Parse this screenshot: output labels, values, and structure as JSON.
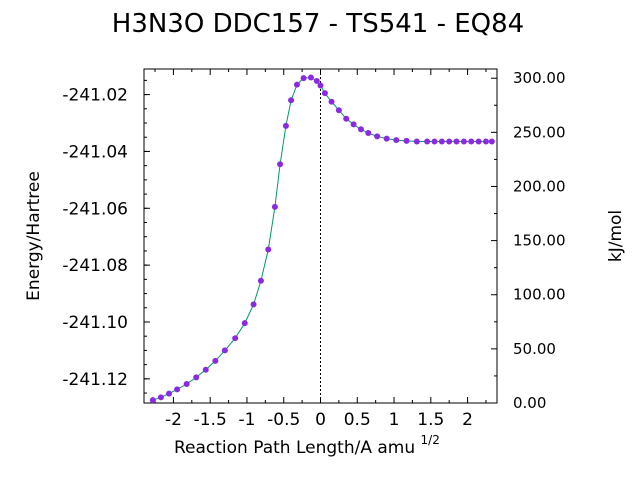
{
  "chart_data": {
    "type": "line",
    "title": "H3N3O   DDC157 - TS541 - EQ84",
    "xlabel": "Reaction Path Length/A amu",
    "xlabel_superscript": "1/2",
    "ylabel_left": "Energy/Hartree",
    "ylabel_right": "kJ/mol",
    "xlim": [
      -2.4,
      2.4
    ],
    "ylim_left": [
      -241.1285,
      -241.011
    ],
    "ylim_right": [
      0,
      308.5
    ],
    "x_ticks": [
      {
        "value": -2,
        "label": "-2"
      },
      {
        "value": -1.5,
        "label": "-1.5"
      },
      {
        "value": -1,
        "label": "-1"
      },
      {
        "value": -0.5,
        "label": "-0.5"
      },
      {
        "value": 0,
        "label": "0"
      },
      {
        "value": 0.5,
        "label": "0.5"
      },
      {
        "value": 1,
        "label": "1"
      },
      {
        "value": 1.5,
        "label": "1.5"
      },
      {
        "value": 2,
        "label": "2"
      }
    ],
    "y_ticks_left": [
      {
        "value": -241.02,
        "label": "-241.02"
      },
      {
        "value": -241.04,
        "label": "-241.04"
      },
      {
        "value": -241.06,
        "label": "-241.06"
      },
      {
        "value": -241.08,
        "label": "-241.08"
      },
      {
        "value": -241.1,
        "label": "-241.10"
      },
      {
        "value": -241.12,
        "label": "-241.12"
      }
    ],
    "y_ticks_right": [
      {
        "value": 300,
        "label": "300.00"
      },
      {
        "value": 250,
        "label": "250.00"
      },
      {
        "value": 200,
        "label": "200.00"
      },
      {
        "value": 150,
        "label": "150.00"
      },
      {
        "value": 100,
        "label": "100.00"
      },
      {
        "value": 50,
        "label": "50.00"
      },
      {
        "value": 0,
        "label": "0.00"
      }
    ],
    "ts_marker_x": 0,
    "colors": {
      "line": "#009966",
      "marker": "#8a2be2",
      "ts_line": "#000000"
    },
    "grid": false,
    "series": [
      {
        "x": [
          -2.28,
          -2.17,
          -2.06,
          -1.95,
          -1.82,
          -1.69,
          -1.56,
          -1.43,
          -1.3,
          -1.16,
          -1.03,
          -0.91,
          -0.81,
          -0.71,
          -0.62,
          -0.55,
          -0.47,
          -0.4,
          -0.32,
          -0.23,
          -0.13,
          -0.05,
          0.0,
          0.06,
          0.15,
          0.25,
          0.35,
          0.45,
          0.55,
          0.65,
          0.77,
          0.9,
          1.03,
          1.17,
          1.31,
          1.45,
          1.55,
          1.65,
          1.75,
          1.85,
          1.95,
          2.05,
          2.15,
          2.25,
          2.33
        ],
        "y": [
          -241.1275,
          -241.1265,
          -241.1252,
          -241.1237,
          -241.1218,
          -241.1195,
          -241.1168,
          -241.1137,
          -241.11,
          -241.1057,
          -241.1004,
          -241.0938,
          -241.0855,
          -241.0745,
          -241.0595,
          -241.0445,
          -241.031,
          -241.022,
          -241.0165,
          -241.0142,
          -241.014,
          -241.0152,
          -241.0168,
          -241.0195,
          -241.0225,
          -241.0255,
          -241.0285,
          -241.0305,
          -241.0322,
          -241.0335,
          -241.0347,
          -241.0355,
          -241.036,
          -241.0363,
          -241.0365,
          -241.0365,
          -241.0365,
          -241.0365,
          -241.0365,
          -241.0365,
          -241.0365,
          -241.0365,
          -241.0365,
          -241.0365,
          -241.0365
        ]
      }
    ]
  }
}
